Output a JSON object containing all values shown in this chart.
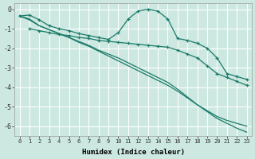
{
  "xlabel": "Humidex (Indice chaleur)",
  "bg_color": "#cce8e0",
  "grid_color": "#b0d8d0",
  "line_color": "#1a7a6a",
  "xlim": [
    -0.5,
    23.5
  ],
  "ylim": [
    -6.5,
    0.3
  ],
  "xtick_labels": [
    "0",
    "1",
    "2",
    "3",
    "4",
    "5",
    "6",
    "7",
    "8",
    "9",
    "10",
    "11",
    "12",
    "13",
    "14",
    "15",
    "16",
    "17",
    "18",
    "19",
    "20",
    "21",
    "22",
    "23"
  ],
  "yticks": [
    0,
    -1,
    -2,
    -3,
    -4,
    -5,
    -6
  ],
  "line1_x": [
    0,
    1,
    2,
    3,
    4,
    5,
    6,
    7,
    8,
    9,
    10,
    11,
    12,
    13,
    14,
    15,
    16,
    17,
    18,
    19,
    20,
    21,
    22,
    23
  ],
  "line1_y": [
    -0.35,
    -0.3,
    -0.55,
    -0.85,
    -1.0,
    -1.1,
    -1.25,
    -1.35,
    -1.45,
    -1.55,
    -1.2,
    -0.5,
    -0.1,
    0.0,
    -0.1,
    -0.5,
    -1.5,
    -1.6,
    -1.75,
    -2.0,
    -2.5,
    -3.3,
    -3.45,
    -3.6
  ],
  "line2_x": [
    1,
    2,
    3,
    4,
    5,
    6,
    7,
    8,
    9,
    10,
    11,
    12,
    13,
    14,
    15,
    16,
    17,
    18,
    19,
    20,
    21,
    22,
    23
  ],
  "line2_y": [
    -1.0,
    -1.1,
    -1.2,
    -1.3,
    -1.35,
    -1.45,
    -1.5,
    -1.6,
    -1.65,
    -1.7,
    -1.75,
    -1.8,
    -1.85,
    -1.9,
    -1.95,
    -2.1,
    -2.3,
    -2.5,
    -2.9,
    -3.3,
    -3.5,
    -3.7,
    -3.9
  ],
  "line3_x": [
    0,
    1,
    2,
    3,
    4,
    5,
    6,
    7,
    8,
    9,
    10,
    11,
    12,
    13,
    14,
    15,
    16,
    17,
    18,
    19,
    20,
    21,
    22,
    23
  ],
  "line3_y": [
    -0.35,
    -0.5,
    -0.85,
    -1.05,
    -1.25,
    -1.45,
    -1.65,
    -1.85,
    -2.1,
    -2.3,
    -2.5,
    -2.75,
    -3.0,
    -3.25,
    -3.5,
    -3.75,
    -4.1,
    -4.5,
    -4.9,
    -5.25,
    -5.6,
    -5.85,
    -6.1,
    -6.3
  ],
  "line4_x": [
    0,
    1,
    2,
    3,
    4,
    5,
    6,
    7,
    8,
    9,
    10,
    11,
    12,
    13,
    14,
    15,
    16,
    17,
    18,
    19,
    20,
    21,
    22,
    23
  ],
  "line4_y": [
    -0.35,
    -0.55,
    -0.85,
    -1.05,
    -1.25,
    -1.45,
    -1.7,
    -1.9,
    -2.15,
    -2.4,
    -2.65,
    -2.9,
    -3.15,
    -3.4,
    -3.65,
    -3.9,
    -4.2,
    -4.55,
    -4.9,
    -5.2,
    -5.5,
    -5.7,
    -5.85,
    -6.0
  ]
}
